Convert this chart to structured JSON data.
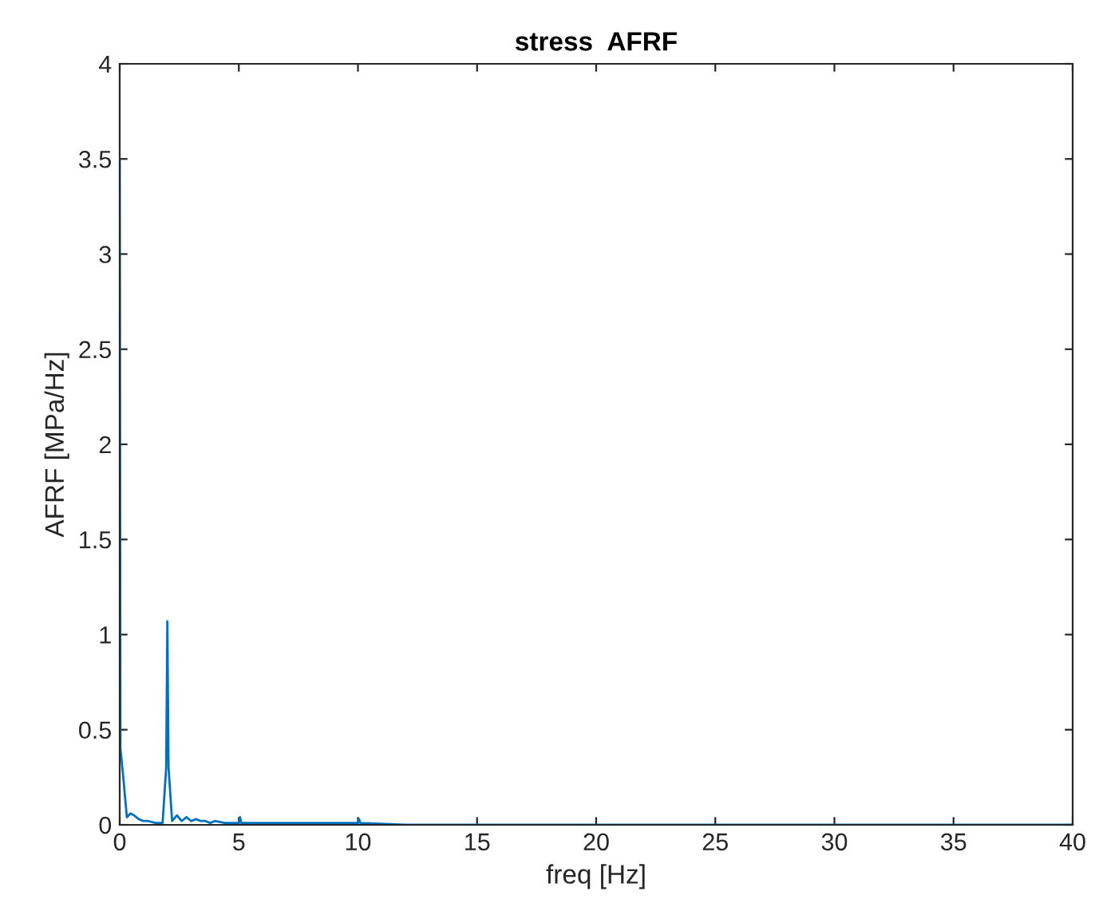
{
  "chart_data": {
    "type": "line",
    "title": "stress  AFRF",
    "xlabel": "freq [Hz]",
    "ylabel": "AFRF [MPa/Hz]",
    "series": [
      {
        "color": "#0072bd",
        "x": [
          0,
          0.03,
          0.15,
          0.3,
          0.45,
          0.6,
          0.8,
          1.0,
          1.2,
          1.5,
          1.8,
          1.95,
          2.0,
          2.05,
          2.2,
          2.4,
          2.6,
          2.8,
          3.0,
          3.2,
          3.4,
          3.6,
          3.8,
          4.0,
          4.4,
          4.8,
          5.0,
          5.05,
          5.1,
          5.4,
          6,
          7,
          8,
          9,
          10,
          10.05,
          10.1,
          12,
          15,
          20,
          25,
          30,
          35,
          40
        ],
        "values": [
          3.5,
          0.4,
          0.25,
          0.04,
          0.06,
          0.05,
          0.03,
          0.02,
          0.02,
          0.01,
          0.01,
          0.3,
          1.07,
          0.3,
          0.02,
          0.05,
          0.02,
          0.04,
          0.02,
          0.03,
          0.02,
          0.02,
          0.01,
          0.02,
          0.01,
          0.01,
          0.01,
          0.04,
          0.01,
          0.01,
          0.01,
          0.01,
          0.01,
          0.01,
          0.01,
          0.03,
          0.01,
          0.0,
          0.0,
          0.0,
          0.0,
          0.0,
          0.0,
          0.0
        ]
      }
    ],
    "xlim": [
      0,
      40
    ],
    "ylim": [
      0,
      4
    ],
    "xticks": [
      0,
      5,
      10,
      15,
      20,
      25,
      30,
      35,
      40
    ],
    "yticks": [
      0,
      0.5,
      1,
      1.5,
      2,
      2.5,
      3,
      3.5,
      4
    ],
    "grid": false,
    "marker": "none",
    "line_style": "solid"
  }
}
